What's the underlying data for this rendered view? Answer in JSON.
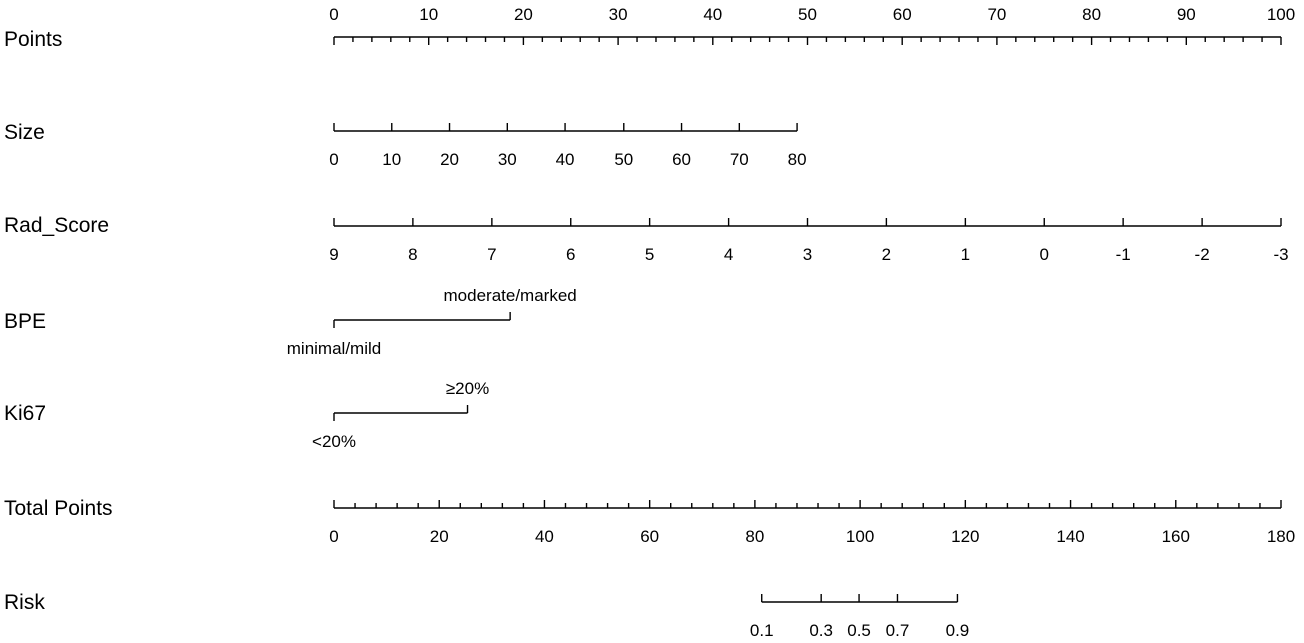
{
  "chart_data": {
    "type": "nomogram",
    "title": "",
    "points_scale": [
      0,
      100
    ],
    "rows": [
      {
        "name": "Points",
        "kind": "scale",
        "labels": [
          "0",
          "10",
          "20",
          "30",
          "40",
          "50",
          "60",
          "70",
          "80",
          "90",
          "100"
        ],
        "values": [
          0,
          10,
          20,
          30,
          40,
          50,
          60,
          70,
          80,
          90,
          100
        ],
        "points": [
          0,
          10,
          20,
          30,
          40,
          50,
          60,
          70,
          80,
          90,
          100
        ],
        "label_side": "above",
        "minor_per_major": 5
      },
      {
        "name": "Size",
        "kind": "scale",
        "labels": [
          "0",
          "10",
          "20",
          "30",
          "40",
          "50",
          "60",
          "70",
          "80"
        ],
        "values": [
          0,
          10,
          20,
          30,
          40,
          50,
          60,
          70,
          80
        ],
        "points": [
          0,
          6.1,
          12.2,
          18.3,
          24.4,
          30.6,
          36.7,
          42.8,
          48.9
        ],
        "label_side": "below"
      },
      {
        "name": "Rad_Score",
        "kind": "scale",
        "labels": [
          "9",
          "8",
          "7",
          "6",
          "5",
          "4",
          "3",
          "2",
          "1",
          "0",
          "-1",
          "-2",
          "-3"
        ],
        "values": [
          9,
          8,
          7,
          6,
          5,
          4,
          3,
          2,
          1,
          0,
          -1,
          -2,
          -3
        ],
        "points": [
          0,
          8.33,
          16.67,
          25,
          33.33,
          41.67,
          50,
          58.33,
          66.67,
          75,
          83.33,
          91.67,
          100
        ],
        "label_side": "below"
      },
      {
        "name": "BPE",
        "kind": "categorical",
        "levels": [
          {
            "label": "minimal/mild",
            "points": 0,
            "side": "below"
          },
          {
            "label": "moderate/marked",
            "points": 18.6,
            "side": "above"
          }
        ]
      },
      {
        "name": "Ki67",
        "kind": "categorical",
        "levels": [
          {
            "label": "<20%",
            "points": 0,
            "side": "below"
          },
          {
            "label": "≥20%",
            "points": 14.1,
            "side": "above"
          }
        ]
      },
      {
        "name": "Total Points",
        "kind": "scale",
        "labels": [
          "0",
          "20",
          "40",
          "60",
          "80",
          "100",
          "120",
          "140",
          "160",
          "180"
        ],
        "values": [
          0,
          20,
          40,
          60,
          80,
          100,
          120,
          140,
          160,
          180
        ],
        "range": [
          0,
          180
        ],
        "label_side": "below",
        "minor_per_major": 5
      },
      {
        "name": "Risk",
        "kind": "scale",
        "labels": [
          "0.1",
          "0.3",
          "0.5",
          "0.7",
          "0.9"
        ],
        "values": [
          0.1,
          0.3,
          0.5,
          0.7,
          0.9
        ],
        "total_points": [
          81.3,
          92.6,
          99.8,
          107.1,
          118.5
        ],
        "label_side": "below"
      }
    ]
  }
}
